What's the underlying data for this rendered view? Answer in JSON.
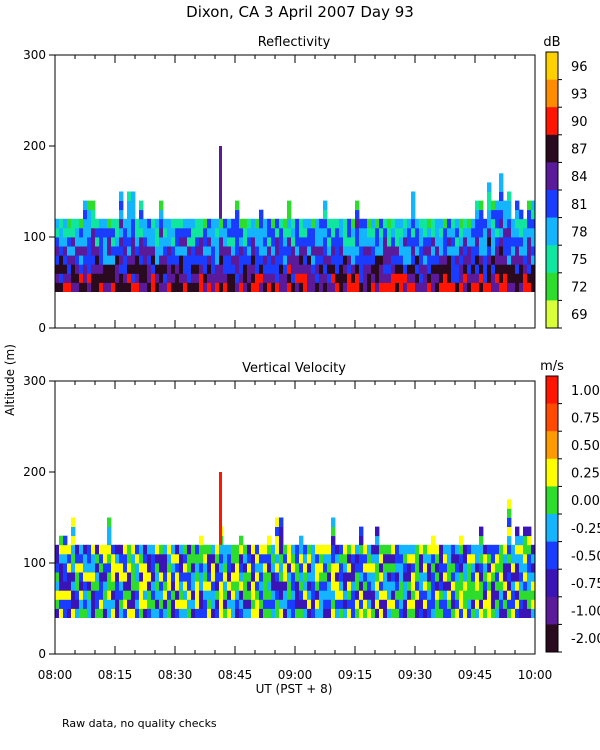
{
  "title": "Dixon, CA   3 April 2007   Day   93",
  "ylabel": "Altitude (m)",
  "xlabel": "UT  (PST + 8)",
  "footer": "Raw data, no quality checks",
  "x_ticks": [
    "08:00",
    "08:15",
    "08:30",
    "08:45",
    "09:00",
    "09:15",
    "09:30",
    "09:45",
    "10:00"
  ],
  "y_ticks": [
    "0",
    "100",
    "200",
    "300"
  ],
  "chart_data": [
    {
      "type": "heatmap",
      "title": "Reflectivity",
      "xlabel": "",
      "ylabel": "Altitude (m)",
      "x_range": [
        "08:00",
        "10:00"
      ],
      "ylim": [
        0,
        300
      ],
      "colorbar": {
        "unit": "dB",
        "labels": [
          "96",
          "93",
          "90",
          "87",
          "84",
          "81",
          "78",
          "75",
          "72",
          "69"
        ],
        "colors": [
          "#ffd000",
          "#ff8c00",
          "#ff1500",
          "#2a0a1e",
          "#5a1a9a",
          "#1a3cff",
          "#14b4ff",
          "#10e6a0",
          "#2edc2e",
          "#d8ff3a"
        ]
      },
      "echo_base_m": 40,
      "echo_top_m": 120,
      "max_echo_top_m": 200,
      "grid": false
    },
    {
      "type": "heatmap",
      "title": "Vertical Velocity",
      "xlabel": "UT  (PST + 8)",
      "ylabel": "Altitude (m)",
      "x_range": [
        "08:00",
        "10:00"
      ],
      "ylim": [
        0,
        300
      ],
      "colorbar": {
        "unit": "m/s",
        "labels": [
          "1.00",
          "0.75",
          "0.50",
          "0.25",
          "0.00",
          "-0.25",
          "-0.50",
          "-0.75",
          "-1.00",
          "-2.00"
        ],
        "colors": [
          "#ff1500",
          "#ff4a00",
          "#ff9a00",
          "#ffff00",
          "#2edc2e",
          "#14b4ff",
          "#1a3cff",
          "#3a14b4",
          "#5a1a9a",
          "#2a0a1e"
        ]
      },
      "echo_base_m": 40,
      "echo_top_m": 120,
      "max_echo_top_m": 200,
      "grid": false
    }
  ]
}
